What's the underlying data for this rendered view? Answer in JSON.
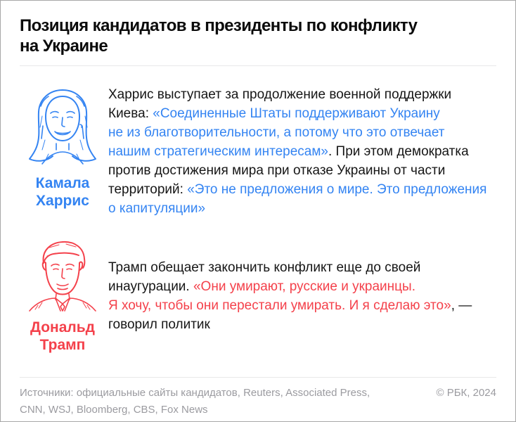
{
  "title": "Позиция кандидатов в президенты по конфликту\nна Украине",
  "colors": {
    "accent_blue": "#3484F2",
    "accent_red": "#F4414B",
    "body_text": "#161616",
    "muted_gray": "#9B9BA0",
    "divider": "#E8E8E9"
  },
  "candidates": [
    {
      "name": "Камала\nХаррис",
      "accent": "#3484F2",
      "portrait_icon": "kamala-harris-portrait",
      "segments": [
        {
          "style": "plain",
          "text": "Харрис выступает за продолжение военной поддержки\nКиева: "
        },
        {
          "style": "accent",
          "text": "«Соединенные Штаты поддерживают Украину\nне из благотворительности, а потому что это отвечает\nнашим стратегическим интересам»"
        },
        {
          "style": "plain",
          "text": ". При этом демократка\nпротив достижения мира при отказе Украины от части\nтерриторий: "
        },
        {
          "style": "accent",
          "text": "«Это не предложения о мире. Это предложения\nо капитуляции»"
        }
      ]
    },
    {
      "name": "Дональд\nТрамп",
      "accent": "#F4414B",
      "portrait_icon": "donald-trump-portrait",
      "segments": [
        {
          "style": "plain",
          "text": "Трамп обещает закончить конфликт еще до своей\nинаугурации. "
        },
        {
          "style": "accent",
          "text": "«Они умирают, русские и украинцы.\nЯ хочу, чтобы они перестали умирать. И я сделаю это»"
        },
        {
          "style": "plain",
          "text": ", —\nговорил политик"
        }
      ]
    }
  ],
  "footer": {
    "sources": "Источники: официальные сайты кандидатов, Reuters, Associated Press,\nCNN, WSJ, Bloomberg, CBS, Fox News",
    "copyright": "© РБК, 2024"
  }
}
